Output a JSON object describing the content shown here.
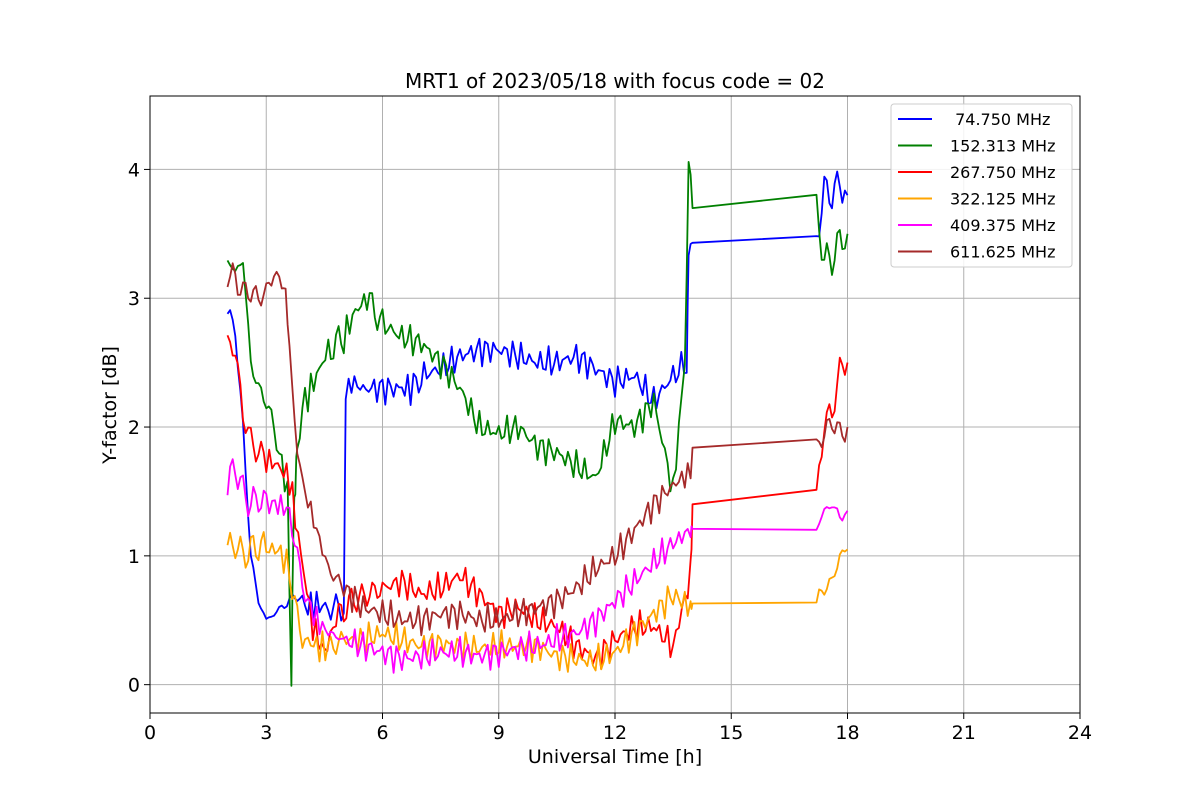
{
  "chart_data": {
    "type": "line",
    "title": "MRT1 of 2023/05/18 with focus code = 02",
    "xlabel": "Universal Time [h]",
    "ylabel": "Y-factor [dB]",
    "xlim": [
      0,
      24
    ],
    "ylim": [
      -0.22,
      4.57
    ],
    "xticks": [
      0,
      3,
      6,
      9,
      12,
      15,
      18,
      21,
      24
    ],
    "yticks": [
      0,
      1,
      2,
      3,
      4
    ],
    "grid": true,
    "legend_position": "top-right",
    "series": [
      {
        "name": " 74.750 MHz",
        "color": "#0000ff",
        "x": [
          2.0,
          2.2,
          2.4,
          2.6,
          2.8,
          3.0,
          3.2,
          3.4,
          3.6,
          3.8,
          4.0,
          4.3,
          4.6,
          5.0,
          5.05,
          5.2,
          5.5,
          6.0,
          6.5,
          6.8,
          7.0,
          7.5,
          8.0,
          8.5,
          9.0,
          9.5,
          10.0,
          10.5,
          11.0,
          11.5,
          12.0,
          12.5,
          13.0,
          13.5,
          13.85,
          13.9,
          14.0,
          17.2,
          17.4,
          17.6,
          17.8,
          18.0
        ],
        "y": [
          2.9,
          2.75,
          2.0,
          1.0,
          0.65,
          0.5,
          0.55,
          0.6,
          0.65,
          0.7,
          0.6,
          0.62,
          0.6,
          0.6,
          2.25,
          2.35,
          2.3,
          2.3,
          2.3,
          2.3,
          2.4,
          2.45,
          2.55,
          2.6,
          2.6,
          2.55,
          2.5,
          2.5,
          2.55,
          2.45,
          2.35,
          2.4,
          2.2,
          2.4,
          2.5,
          3.43,
          3.43,
          3.45,
          3.85,
          3.8,
          3.9,
          3.8
        ]
      },
      {
        "name": "152.313 MHz",
        "color": "#008000",
        "x": [
          2.0,
          2.2,
          2.4,
          2.6,
          2.8,
          3.0,
          3.2,
          3.4,
          3.55,
          3.65,
          3.7,
          3.75,
          3.8,
          4.0,
          4.3,
          4.6,
          5.0,
          5.3,
          5.6,
          6.0,
          6.5,
          7.0,
          7.5,
          8.0,
          8.5,
          9.0,
          9.5,
          10.0,
          10.5,
          11.0,
          11.5,
          12.0,
          12.5,
          13.0,
          13.5,
          13.8,
          13.9,
          14.0,
          17.2,
          17.4,
          17.6,
          17.8,
          18.0
        ],
        "y": [
          3.3,
          3.2,
          3.3,
          2.5,
          2.3,
          2.2,
          2.0,
          1.7,
          1.5,
          0.0,
          1.2,
          1.6,
          1.9,
          2.2,
          2.4,
          2.6,
          2.7,
          2.9,
          3.0,
          2.8,
          2.7,
          2.65,
          2.5,
          2.3,
          2.0,
          1.95,
          2.0,
          1.85,
          1.8,
          1.7,
          1.6,
          2.05,
          2.0,
          2.2,
          1.5,
          2.5,
          4.1,
          3.7,
          3.68,
          3.3,
          3.3,
          3.45,
          3.5
        ]
      },
      {
        "name": "267.750 MHz",
        "color": "#ff0000",
        "x": [
          2.0,
          2.2,
          2.4,
          2.6,
          2.8,
          3.0,
          3.3,
          3.6,
          3.9,
          4.2,
          4.5,
          4.8,
          5.2,
          5.6,
          6.0,
          6.5,
          7.0,
          7.5,
          8.0,
          8.5,
          9.0,
          9.5,
          10.0,
          10.5,
          11.0,
          11.5,
          12.0,
          12.5,
          13.0,
          13.5,
          13.95,
          14.0,
          17.2,
          17.4,
          17.6,
          17.8,
          18.0
        ],
        "y": [
          2.65,
          2.6,
          2.1,
          1.9,
          1.8,
          1.75,
          1.7,
          1.6,
          1.0,
          0.45,
          0.25,
          0.5,
          0.65,
          0.7,
          0.75,
          0.8,
          0.7,
          0.75,
          0.85,
          0.7,
          0.55,
          0.6,
          0.5,
          0.45,
          0.3,
          0.2,
          0.35,
          0.45,
          0.45,
          0.3,
          0.85,
          1.4,
          1.42,
          2.05,
          2.1,
          2.45,
          2.5
        ]
      },
      {
        "name": "322.125 MHz",
        "color": "#ffa500",
        "x": [
          2.0,
          2.2,
          2.4,
          2.6,
          2.8,
          3.0,
          3.3,
          3.6,
          3.8,
          4.0,
          4.3,
          4.6,
          5.0,
          5.5,
          6.0,
          6.5,
          7.0,
          7.5,
          8.0,
          8.5,
          9.0,
          9.5,
          10.0,
          10.5,
          11.0,
          11.5,
          12.0,
          12.5,
          13.0,
          13.5,
          13.95,
          14.0,
          17.2,
          17.4,
          17.6,
          17.8,
          18.0
        ],
        "y": [
          1.05,
          1.1,
          1.0,
          1.05,
          1.08,
          1.05,
          1.05,
          0.9,
          0.5,
          0.35,
          0.3,
          0.28,
          0.35,
          0.35,
          0.4,
          0.35,
          0.3,
          0.32,
          0.3,
          0.28,
          0.3,
          0.3,
          0.3,
          0.22,
          0.2,
          0.18,
          0.25,
          0.4,
          0.55,
          0.7,
          0.6,
          0.63,
          0.64,
          0.75,
          0.8,
          1.0,
          1.05
        ]
      },
      {
        "name": "409.375 MHz",
        "color": "#ff00ff",
        "x": [
          2.0,
          2.2,
          2.4,
          2.6,
          2.8,
          3.0,
          3.3,
          3.6,
          3.8,
          4.0,
          4.3,
          4.6,
          5.0,
          5.5,
          6.0,
          6.5,
          7.0,
          7.5,
          8.0,
          8.5,
          9.0,
          9.5,
          10.0,
          10.5,
          11.0,
          11.5,
          12.0,
          12.5,
          13.0,
          13.5,
          13.95,
          14.0,
          17.2,
          17.4,
          17.6,
          17.8,
          18.0
        ],
        "y": [
          1.55,
          1.7,
          1.5,
          1.4,
          1.45,
          1.4,
          1.4,
          1.35,
          1.0,
          0.7,
          0.5,
          0.4,
          0.35,
          0.3,
          0.25,
          0.2,
          0.22,
          0.25,
          0.25,
          0.22,
          0.25,
          0.28,
          0.3,
          0.35,
          0.4,
          0.5,
          0.65,
          0.8,
          0.95,
          1.1,
          1.2,
          1.21,
          1.21,
          1.35,
          1.4,
          1.3,
          1.35
        ]
      },
      {
        "name": "611.625 MHz",
        "color": "#a52a2a",
        "x": [
          2.0,
          2.2,
          2.4,
          2.6,
          2.8,
          3.0,
          3.2,
          3.4,
          3.5,
          3.6,
          3.8,
          4.0,
          4.3,
          4.6,
          5.0,
          5.5,
          6.0,
          6.5,
          7.0,
          7.5,
          8.0,
          8.5,
          9.0,
          9.5,
          10.0,
          10.5,
          11.0,
          11.5,
          12.0,
          12.5,
          13.0,
          13.5,
          13.95,
          14.0,
          17.2,
          17.4,
          17.6,
          17.8,
          18.0
        ],
        "y": [
          3.2,
          3.15,
          3.05,
          3.05,
          3.0,
          3.05,
          3.2,
          3.1,
          2.95,
          2.6,
          1.8,
          1.5,
          1.2,
          0.9,
          0.75,
          0.6,
          0.55,
          0.5,
          0.5,
          0.55,
          0.55,
          0.5,
          0.5,
          0.55,
          0.6,
          0.65,
          0.75,
          0.9,
          1.0,
          1.2,
          1.4,
          1.55,
          1.65,
          1.84,
          1.84,
          1.95,
          2.05,
          1.95,
          2.0
        ]
      }
    ]
  }
}
